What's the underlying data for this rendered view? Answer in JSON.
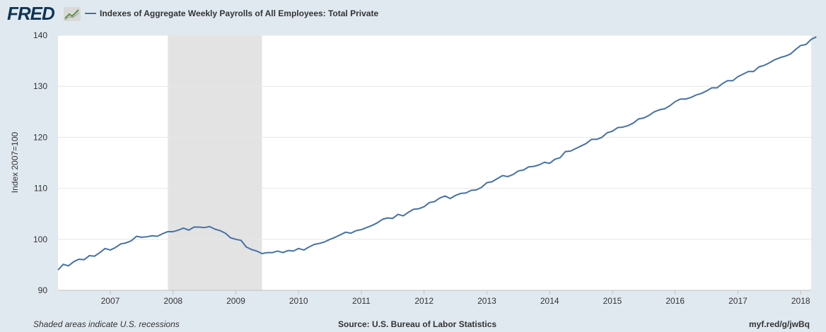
{
  "header": {
    "logo_text": "FRED",
    "logo_icon": "line-chart-icon"
  },
  "colors": {
    "background": "#e1e9f0",
    "plot_background": "#ffffff",
    "series": "#4572a7",
    "recession_shade": "#e3e3e3",
    "grid": "#e6e6e6",
    "logo": "#0e3555"
  },
  "footer": {
    "note": "Shaded areas indicate U.S. recessions",
    "source": "Source: U.S. Bureau of Labor Statistics",
    "short_url": "myf.red/g/jwBq"
  },
  "chart_data": {
    "type": "line",
    "title": "",
    "xlabel": "",
    "ylabel": "Index 2007=100",
    "ylim": [
      90,
      140
    ],
    "y_ticks": [
      90,
      100,
      110,
      120,
      130,
      140
    ],
    "x_ticks": [
      "2007",
      "2008",
      "2009",
      "2010",
      "2011",
      "2012",
      "2013",
      "2014",
      "2015",
      "2016",
      "2017",
      "2018"
    ],
    "x_range": [
      "2006-03",
      "2018-03"
    ],
    "grid": true,
    "legend_position": "top-left",
    "recessions": [
      {
        "start": "2007-12",
        "end": "2009-06"
      }
    ],
    "series": [
      {
        "name": "Indexes of Aggregate Weekly Payrolls of All Employees: Total Private",
        "start": "2006-03",
        "frequency": "monthly",
        "values": [
          94.0,
          95.1,
          94.8,
          95.6,
          96.1,
          96.0,
          96.8,
          96.7,
          97.4,
          98.2,
          97.9,
          98.4,
          99.1,
          99.3,
          99.7,
          100.6,
          100.4,
          100.5,
          100.7,
          100.6,
          101.1,
          101.5,
          101.5,
          101.8,
          102.2,
          101.8,
          102.4,
          102.4,
          102.3,
          102.5,
          102.0,
          101.7,
          101.2,
          100.3,
          100.0,
          99.8,
          98.5,
          98.0,
          97.7,
          97.2,
          97.4,
          97.4,
          97.7,
          97.4,
          97.8,
          97.7,
          98.2,
          97.9,
          98.5,
          99.0,
          99.2,
          99.5,
          100.0,
          100.4,
          100.9,
          101.4,
          101.2,
          101.7,
          101.9,
          102.3,
          102.7,
          103.2,
          103.9,
          104.2,
          104.1,
          104.9,
          104.6,
          105.3,
          105.9,
          106.0,
          106.4,
          107.2,
          107.4,
          108.1,
          108.5,
          108.0,
          108.6,
          109.0,
          109.1,
          109.6,
          109.7,
          110.2,
          111.1,
          111.3,
          111.9,
          112.5,
          112.3,
          112.7,
          113.4,
          113.6,
          114.2,
          114.3,
          114.6,
          115.1,
          114.9,
          115.7,
          116.0,
          117.2,
          117.3,
          117.8,
          118.3,
          118.8,
          119.6,
          119.6,
          120.0,
          120.9,
          121.2,
          121.9,
          122.0,
          122.3,
          122.8,
          123.6,
          123.8,
          124.3,
          125.0,
          125.4,
          125.6,
          126.2,
          127.0,
          127.5,
          127.5,
          127.8,
          128.3,
          128.6,
          129.1,
          129.7,
          129.7,
          130.5,
          131.1,
          131.1,
          131.9,
          132.4,
          132.9,
          132.9,
          133.8,
          134.1,
          134.6,
          135.2,
          135.6,
          135.9,
          136.3,
          137.2,
          138.0,
          138.2,
          139.2,
          139.7
        ]
      }
    ]
  }
}
